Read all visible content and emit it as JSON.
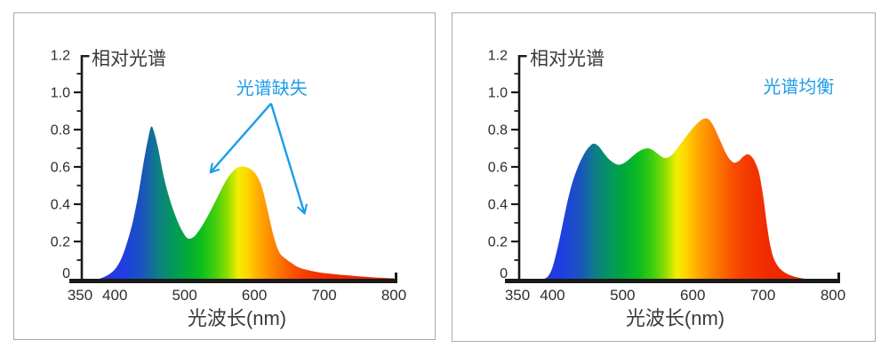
{
  "page": {
    "background": "#ffffff",
    "panel_border": "#a9a9a9"
  },
  "colors": {
    "accent_blue": "#1b9de8",
    "axis": "#1a1a1a",
    "title_text": "#3a3a3a",
    "tick_text": "#2d2d2d"
  },
  "spectral_gradient_stops": [
    [
      380,
      "#2c33da"
    ],
    [
      412,
      "#1f3de4"
    ],
    [
      440,
      "#1a55bb"
    ],
    [
      462,
      "#0d7f86"
    ],
    [
      482,
      "#04965e"
    ],
    [
      503,
      "#00a93a"
    ],
    [
      523,
      "#0cbd1f"
    ],
    [
      543,
      "#3ecf0e"
    ],
    [
      561,
      "#8edd00"
    ],
    [
      577,
      "#f2ee00"
    ],
    [
      591,
      "#ffd300"
    ],
    [
      605,
      "#ffae00"
    ],
    [
      620,
      "#ff9100"
    ],
    [
      638,
      "#fc7000"
    ],
    [
      657,
      "#f95000"
    ],
    [
      680,
      "#f43800"
    ],
    [
      708,
      "#f02a00"
    ],
    [
      750,
      "#ed2600"
    ],
    [
      800,
      "#ec2500"
    ]
  ],
  "chart_data": [
    {
      "type": "area",
      "title": "相对光谱",
      "xlabel": "光波长(nm)",
      "ylabel": "",
      "xlim": [
        350,
        800
      ],
      "ylim": [
        0,
        1.2
      ],
      "x_tick_values": [
        350,
        400,
        500,
        600,
        700,
        800
      ],
      "x_tick_labels": [
        "350",
        "400",
        "500",
        "600",
        "700",
        "800"
      ],
      "y_tick_values": [
        0,
        0.2,
        0.4,
        0.6,
        0.8,
        1.0,
        1.2
      ],
      "y_tick_labels": [
        "0",
        "0.2",
        "0.4",
        "0.6",
        "0.8",
        "1.0",
        "1.2"
      ],
      "y_minor_step": 0.1,
      "grid": false,
      "legend_position": "none",
      "annotation": {
        "text": "光谱缺失",
        "color": "#1b9de8",
        "text_x": 625,
        "text_y": 1.025,
        "arrow_origin": {
          "x": 624,
          "y": 0.94
        },
        "arrow_tips": [
          {
            "x": 537,
            "y": 0.57
          },
          {
            "x": 672,
            "y": 0.35
          }
        ]
      },
      "series": [
        {
          "name": "相对光谱 (光谱缺失)",
          "x": [
            378,
            386,
            394,
            402,
            410,
            418,
            426,
            434,
            441,
            447,
            452,
            456,
            462,
            470,
            478,
            487,
            496,
            504,
            512,
            520,
            530,
            540,
            550,
            560,
            569,
            578,
            587,
            596,
            604,
            611,
            617,
            623,
            629,
            636,
            644,
            653,
            663,
            675,
            690,
            708,
            728,
            750,
            772,
            790,
            800
          ],
          "y": [
            0,
            0.012,
            0.03,
            0.06,
            0.115,
            0.2,
            0.31,
            0.46,
            0.62,
            0.74,
            0.815,
            0.79,
            0.7,
            0.55,
            0.435,
            0.335,
            0.26,
            0.218,
            0.222,
            0.255,
            0.315,
            0.385,
            0.46,
            0.53,
            0.575,
            0.6,
            0.6,
            0.585,
            0.55,
            0.49,
            0.4,
            0.3,
            0.21,
            0.14,
            0.11,
            0.085,
            0.062,
            0.048,
            0.036,
            0.027,
            0.02,
            0.013,
            0.007,
            0.004,
            0.003
          ]
        }
      ]
    },
    {
      "type": "area",
      "title": "相对光谱",
      "xlabel": "光波长(nm)",
      "ylabel": "",
      "xlim": [
        350,
        800
      ],
      "ylim": [
        0,
        1.2
      ],
      "x_tick_values": [
        350,
        400,
        500,
        600,
        700,
        800
      ],
      "x_tick_labels": [
        "350",
        "400",
        "500",
        "600",
        "700",
        "800"
      ],
      "y_tick_values": [
        0,
        0.2,
        0.4,
        0.6,
        0.8,
        1.0,
        1.2
      ],
      "y_tick_labels": [
        "0",
        "0.2",
        "0.4",
        "0.6",
        "0.8",
        "1.0",
        "1.2"
      ],
      "y_minor_step": 0.1,
      "grid": false,
      "legend_position": "none",
      "annotation": {
        "text": "光谱均衡",
        "color": "#1b9de8",
        "text_x": 751,
        "text_y": 1.03,
        "arrow_tips": []
      },
      "series": [
        {
          "name": "相对光谱 (光谱均衡)",
          "x": [
            389,
            394,
            399,
            404,
            410,
            416,
            423,
            430,
            438,
            446,
            453,
            459,
            466,
            473,
            481,
            489,
            496,
            504,
            512,
            520,
            528,
            536,
            543,
            550,
            557,
            563,
            570,
            577,
            585,
            593,
            601,
            609,
            616,
            622,
            628,
            634,
            641,
            648,
            655,
            660,
            666,
            672,
            678,
            684,
            689,
            694,
            698,
            702,
            706,
            710,
            714,
            719,
            725,
            733,
            742,
            752,
            760
          ],
          "y": [
            0,
            0.015,
            0.05,
            0.115,
            0.21,
            0.32,
            0.44,
            0.535,
            0.615,
            0.675,
            0.71,
            0.725,
            0.71,
            0.675,
            0.64,
            0.618,
            0.612,
            0.625,
            0.65,
            0.675,
            0.693,
            0.7,
            0.69,
            0.67,
            0.652,
            0.648,
            0.663,
            0.695,
            0.735,
            0.775,
            0.812,
            0.842,
            0.858,
            0.857,
            0.83,
            0.785,
            0.725,
            0.668,
            0.632,
            0.622,
            0.633,
            0.655,
            0.668,
            0.655,
            0.625,
            0.575,
            0.5,
            0.4,
            0.285,
            0.19,
            0.125,
            0.082,
            0.052,
            0.03,
            0.015,
            0.005,
            0
          ]
        }
      ]
    }
  ]
}
